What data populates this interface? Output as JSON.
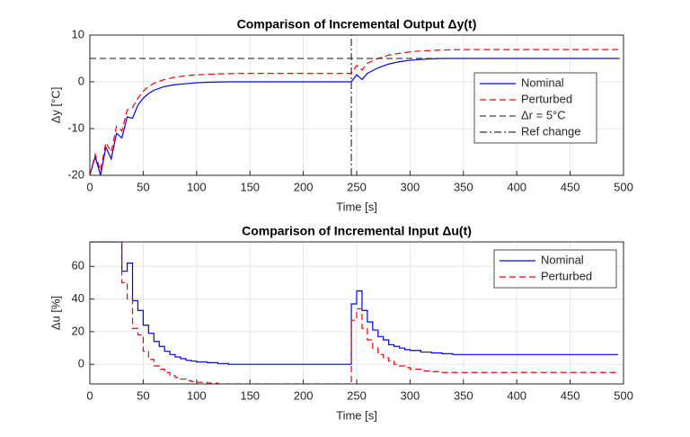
{
  "chart_data": [
    {
      "type": "line",
      "title": "Comparison of Incremental Output Δy(t)",
      "x_label": "Time [s]",
      "y_label": "Δy [°C]",
      "xlim": [
        0,
        500
      ],
      "ylim": [
        -20,
        10
      ],
      "xticks": [
        0,
        50,
        100,
        150,
        200,
        250,
        300,
        350,
        400,
        450,
        500
      ],
      "yticks": [
        -20,
        -10,
        0,
        10
      ],
      "grid": true,
      "legend": "east",
      "x": [
        0,
        5,
        10,
        15,
        20,
        25,
        30,
        35,
        40,
        45,
        50,
        55,
        60,
        70,
        80,
        90,
        100,
        110,
        120,
        130,
        140,
        150,
        160,
        170,
        180,
        190,
        200,
        210,
        220,
        230,
        240,
        245,
        250,
        255,
        260,
        270,
        280,
        290,
        300,
        310,
        320,
        330,
        340,
        350,
        360,
        370,
        380,
        390,
        400,
        410,
        420,
        430,
        440,
        450,
        460,
        470,
        480,
        490,
        495
      ],
      "series": [
        {
          "name": "Nominal",
          "color": "#0000ff",
          "dash": "solid",
          "values": [
            -20,
            -16,
            -20,
            -14,
            -16.5,
            -11,
            -12,
            -7.5,
            -7.8,
            -5,
            -3.5,
            -2.5,
            -1.8,
            -1,
            -0.6,
            -0.4,
            -0.2,
            -0.1,
            -0.05,
            0,
            0,
            0,
            0,
            0,
            0,
            0,
            0,
            0,
            0,
            0,
            0,
            0,
            1.5,
            0.5,
            1.8,
            3,
            3.8,
            4.3,
            4.6,
            4.8,
            4.9,
            5,
            5,
            5,
            5,
            5,
            5,
            5,
            5,
            5,
            5,
            5,
            5,
            5,
            5,
            5,
            5,
            5,
            5
          ]
        },
        {
          "name": "Perturbed",
          "color": "#ff0000",
          "dash": "dashed",
          "values": [
            -20,
            -15.5,
            -19,
            -13,
            -15,
            -9.5,
            -10.5,
            -6,
            -5.5,
            -3.5,
            -2,
            -1,
            -0.3,
            0.5,
            1,
            1.3,
            1.5,
            1.6,
            1.7,
            1.75,
            1.8,
            1.8,
            1.8,
            1.8,
            1.8,
            1.8,
            1.8,
            1.8,
            1.8,
            1.8,
            1.8,
            1.8,
            3.5,
            2.5,
            4,
            5,
            5.7,
            6.1,
            6.4,
            6.6,
            6.7,
            6.8,
            6.85,
            6.9,
            6.9,
            6.9,
            6.9,
            6.9,
            6.9,
            6.9,
            6.9,
            6.9,
            6.9,
            6.9,
            6.9,
            6.9,
            6.9,
            6.9,
            6.9
          ]
        },
        {
          "name": "Δr = 5°C",
          "color": "#444444",
          "dash": "dashed",
          "x": [
            0,
            500
          ],
          "values": [
            5,
            5
          ]
        },
        {
          "name": "Ref change",
          "color": "#333333",
          "dash": "dashdot",
          "x": [
            245,
            245
          ],
          "values": [
            -20,
            10
          ]
        }
      ]
    },
    {
      "type": "step",
      "title": "Comparison of Incremental Input Δu(t)",
      "x_label": "Time [s]",
      "y_label": "Δu [%]",
      "xlim": [
        0,
        500
      ],
      "ylim": [
        -12,
        75
      ],
      "xticks": [
        0,
        50,
        100,
        150,
        200,
        250,
        300,
        350,
        400,
        450,
        500
      ],
      "yticks": [
        0,
        20,
        40,
        60
      ],
      "grid": true,
      "legend": "northeast",
      "x": [
        0,
        30,
        35,
        40,
        45,
        50,
        55,
        60,
        65,
        70,
        75,
        80,
        85,
        90,
        95,
        100,
        110,
        120,
        130,
        245,
        250,
        255,
        260,
        265,
        270,
        275,
        280,
        285,
        290,
        295,
        300,
        310,
        320,
        330,
        340,
        495
      ],
      "series": [
        {
          "name": "Nominal",
          "color": "#0000ff",
          "dash": "solid",
          "values": [
            75,
            57,
            62,
            39,
            33,
            24,
            19,
            14,
            11,
            8,
            6,
            4.5,
            3.5,
            2.5,
            2,
            1.5,
            1,
            0.5,
            0,
            37,
            45,
            33,
            26,
            21,
            17,
            15,
            12,
            11,
            10,
            9,
            8.5,
            7.5,
            7,
            6.5,
            6,
            6
          ]
        },
        {
          "name": "Perturbed",
          "color": "#ff0000",
          "dash": "dashed",
          "values": [
            75,
            50,
            40,
            22,
            18,
            8,
            3,
            -1,
            -3,
            -5,
            -7,
            -8,
            -9,
            -10,
            -10.5,
            -11,
            -11.5,
            -12,
            -12,
            27,
            34,
            22,
            15,
            10,
            6,
            4,
            2,
            0,
            -1,
            -2,
            -3,
            -4,
            -4.5,
            -5,
            -5,
            -5
          ]
        }
      ]
    }
  ]
}
